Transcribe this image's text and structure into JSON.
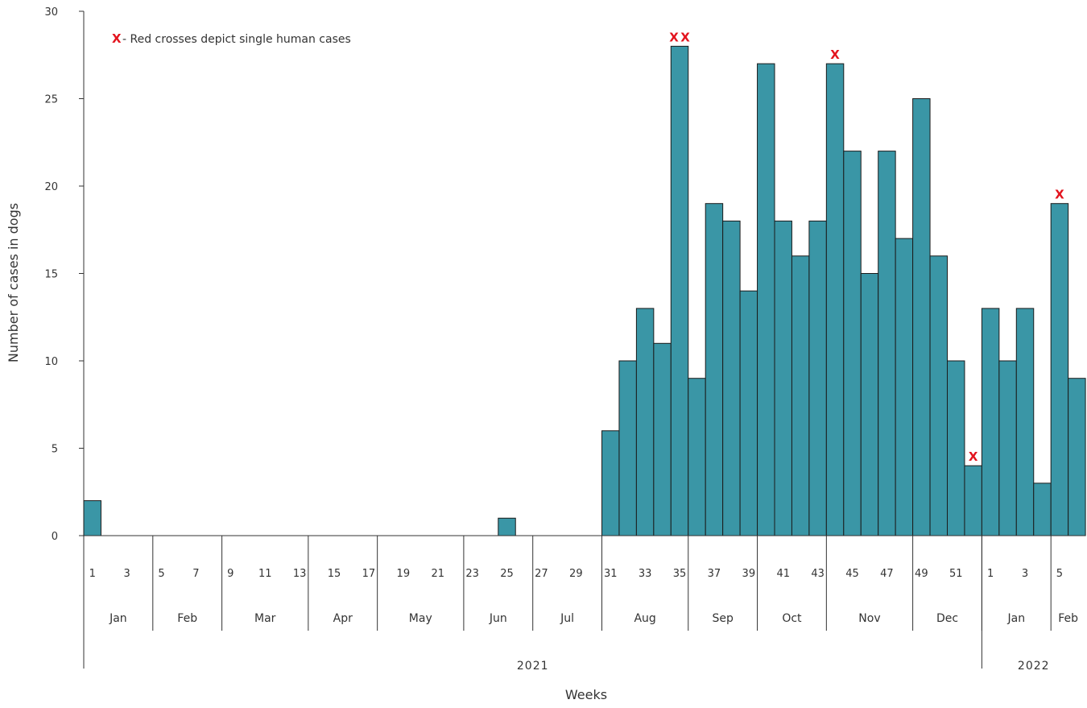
{
  "colors": {
    "bar_fill": "#3a96a6",
    "bar_stroke": "#1b1b1b",
    "axis": "#333333",
    "human_case": "#e3141e"
  },
  "chart_data": {
    "type": "bar",
    "ylabel": "Number of cases in dogs",
    "xlabel": "Weeks",
    "ylim": [
      0,
      30
    ],
    "yticks": [
      0,
      5,
      10,
      15,
      20,
      25,
      30
    ],
    "grid": false,
    "legend": {
      "marker": "X",
      "text": "- Red crosses depict single human cases",
      "position": "top-left"
    },
    "weeks": [
      1,
      2,
      3,
      4,
      5,
      6,
      7,
      8,
      9,
      10,
      11,
      12,
      13,
      14,
      15,
      16,
      17,
      18,
      19,
      20,
      21,
      22,
      23,
      24,
      25,
      26,
      27,
      28,
      29,
      30,
      31,
      32,
      33,
      34,
      35,
      36,
      37,
      38,
      39,
      40,
      41,
      42,
      43,
      44,
      45,
      46,
      47,
      48,
      49,
      50,
      51,
      52,
      1,
      2,
      3,
      4,
      5,
      6
    ],
    "values": [
      2,
      0,
      0,
      0,
      0,
      0,
      0,
      0,
      0,
      0,
      0,
      0,
      0,
      0,
      0,
      0,
      0,
      0,
      0,
      0,
      0,
      0,
      0,
      0,
      1,
      0,
      0,
      0,
      0,
      0,
      6,
      10,
      13,
      11,
      28,
      9,
      19,
      18,
      14,
      27,
      18,
      16,
      18,
      27,
      22,
      15,
      22,
      17,
      25,
      16,
      10,
      4,
      13,
      10,
      13,
      3,
      19,
      9
    ],
    "week_tick_labels": [
      "1",
      "3",
      "5",
      "7",
      "9",
      "11",
      "13",
      "15",
      "17",
      "19",
      "21",
      "23",
      "25",
      "27",
      "29",
      "31",
      "33",
      "35",
      "37",
      "39",
      "41",
      "43",
      "45",
      "47",
      "49",
      "51",
      "1",
      "3",
      "5"
    ],
    "week_tick_indices": [
      0,
      2,
      4,
      6,
      8,
      10,
      12,
      14,
      16,
      18,
      20,
      22,
      24,
      26,
      28,
      30,
      32,
      34,
      36,
      38,
      40,
      42,
      44,
      46,
      48,
      50,
      52,
      54,
      56
    ],
    "months": [
      {
        "label": "Jan",
        "start": 0,
        "end": 4
      },
      {
        "label": "Feb",
        "start": 4,
        "end": 8
      },
      {
        "label": "Mar",
        "start": 8,
        "end": 13
      },
      {
        "label": "Apr",
        "start": 13,
        "end": 17
      },
      {
        "label": "May",
        "start": 17,
        "end": 22
      },
      {
        "label": "Jun",
        "start": 22,
        "end": 26
      },
      {
        "label": "Jul",
        "start": 26,
        "end": 30
      },
      {
        "label": "Aug",
        "start": 30,
        "end": 35
      },
      {
        "label": "Sep",
        "start": 35,
        "end": 39
      },
      {
        "label": "Oct",
        "start": 39,
        "end": 43
      },
      {
        "label": "Nov",
        "start": 43,
        "end": 48
      },
      {
        "label": "Dec",
        "start": 48,
        "end": 52
      },
      {
        "label": "Jan",
        "start": 52,
        "end": 56
      },
      {
        "label": "Feb",
        "start": 56,
        "end": 58
      }
    ],
    "years": [
      {
        "label": "2021",
        "start": 0,
        "end": 52
      },
      {
        "label": "2022",
        "start": 52,
        "end": 58
      }
    ],
    "human_cases": [
      {
        "week_index": 34,
        "count": 2
      },
      {
        "week_index": 43,
        "count": 1
      },
      {
        "week_index": 51,
        "count": 1
      },
      {
        "week_index": 56,
        "count": 1
      }
    ]
  }
}
